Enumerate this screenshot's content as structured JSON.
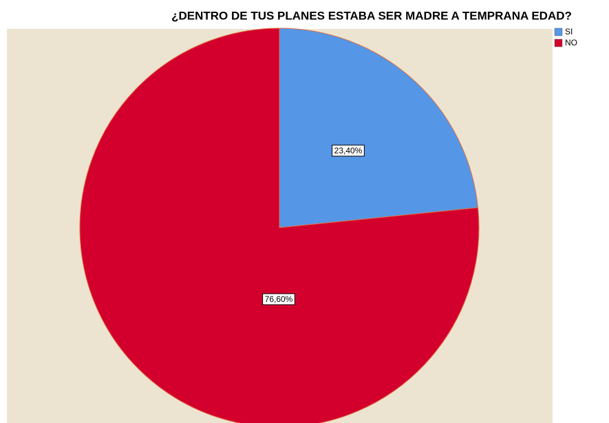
{
  "chart_data": {
    "type": "pie",
    "title": "¿DENTRO DE TUS PLANES ESTABA SER MADRE A TEMPRANA EDAD?",
    "categories": [
      "SI",
      "NO"
    ],
    "values": [
      23.4,
      76.6
    ],
    "value_labels": [
      "23,40%",
      "76,60%"
    ],
    "colors": [
      "#5596e6",
      "#d3002d"
    ],
    "legend": "top-right"
  }
}
